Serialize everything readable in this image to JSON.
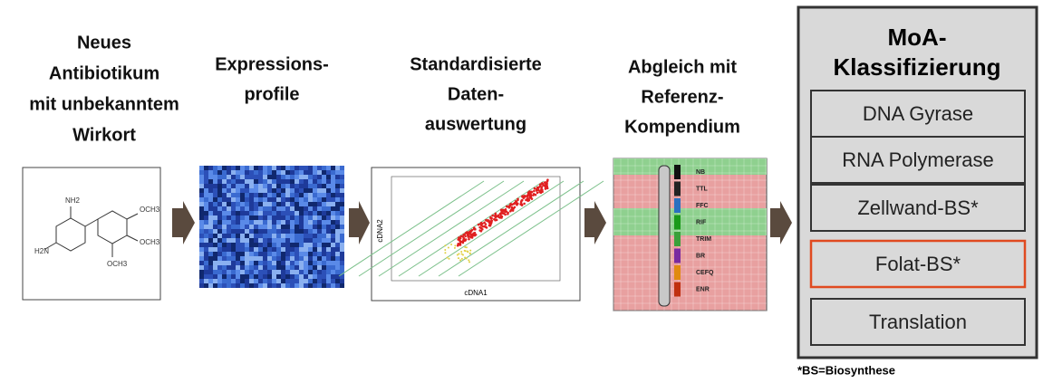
{
  "steps": [
    {
      "lines": [
        "Neues",
        "Antibiotikum",
        "mit unbekanntem",
        "Wirkort"
      ]
    },
    {
      "lines": [
        "Expressions-",
        "profile"
      ]
    },
    {
      "lines": [
        "Standardisierte",
        "Daten-",
        "auswertung"
      ]
    },
    {
      "lines": [
        "Abgleich mit",
        "Referenz-",
        "Kompendium"
      ]
    }
  ],
  "molecule": {
    "labels": [
      "NH2",
      "H2N",
      "OCH3",
      "OCH3",
      "OCH3"
    ]
  },
  "scatter": {
    "x_label": "cDNA1",
    "y_label": "cDNA2"
  },
  "compendium": {
    "labels": [
      "NB",
      "TTL",
      "FFC",
      "RIF",
      "TRIM",
      "BR",
      "CEFQ",
      "ENR"
    ]
  },
  "moa": {
    "title": [
      "MoA-",
      "Klassifizierung"
    ],
    "items": [
      "DNA Gyrase",
      "RNA Polymerase",
      "Zellwand-BS*",
      "Folat-BS*",
      "Translation"
    ],
    "highlighted": 3
  },
  "footnote": "*BS=Biosynthese"
}
